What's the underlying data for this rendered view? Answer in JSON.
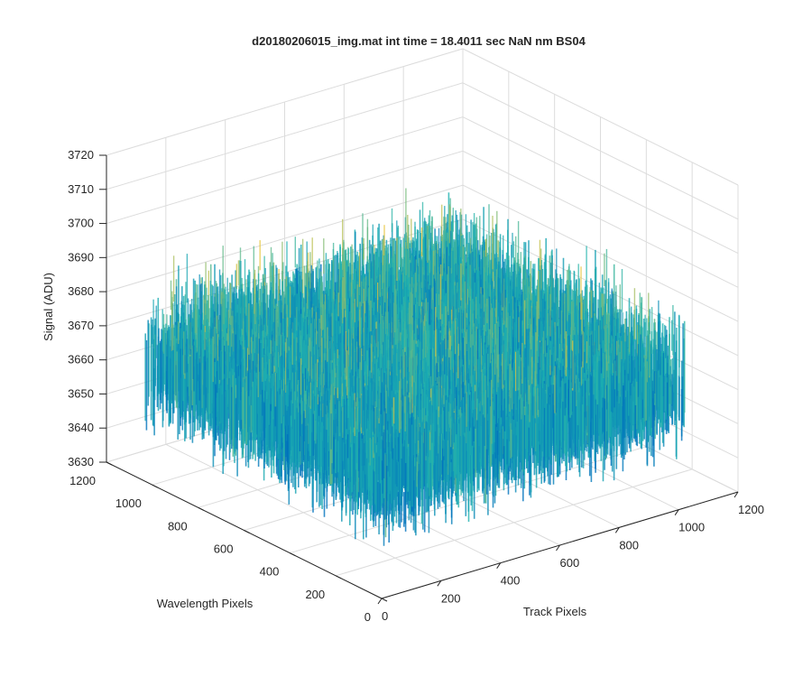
{
  "chart_data": {
    "type": "surface",
    "title": "d20180206015_img.mat int time = 18.4011 sec  NaN nm BS04",
    "xlabel": "Track Pixels",
    "ylabel": "Wavelength Pixels",
    "zlabel": "Signal (ADU)",
    "xlim": [
      0,
      1200
    ],
    "ylim": [
      0,
      1200
    ],
    "zlim": [
      3630,
      3720
    ],
    "xticks": [
      "0",
      "200",
      "400",
      "600",
      "800",
      "1000",
      "1200"
    ],
    "yticks": [
      "0",
      "200",
      "400",
      "600",
      "800",
      "1000",
      "1200"
    ],
    "zticks": [
      "3630",
      "3640",
      "3650",
      "3660",
      "3670",
      "3680",
      "3690",
      "3700",
      "3710",
      "3720"
    ],
    "data_extent": {
      "x": [
        0,
        1024
      ],
      "y": [
        0,
        1024
      ]
    },
    "signal": {
      "mean": 3670,
      "spread": [
        3640,
        3712
      ]
    },
    "grid": true,
    "colormap": "parula",
    "colors": {
      "low": "#0072bd",
      "mid": "#1fb3b0",
      "high": "#e6c43a",
      "axis": "#262626",
      "grid": "#dcdcdc"
    }
  }
}
